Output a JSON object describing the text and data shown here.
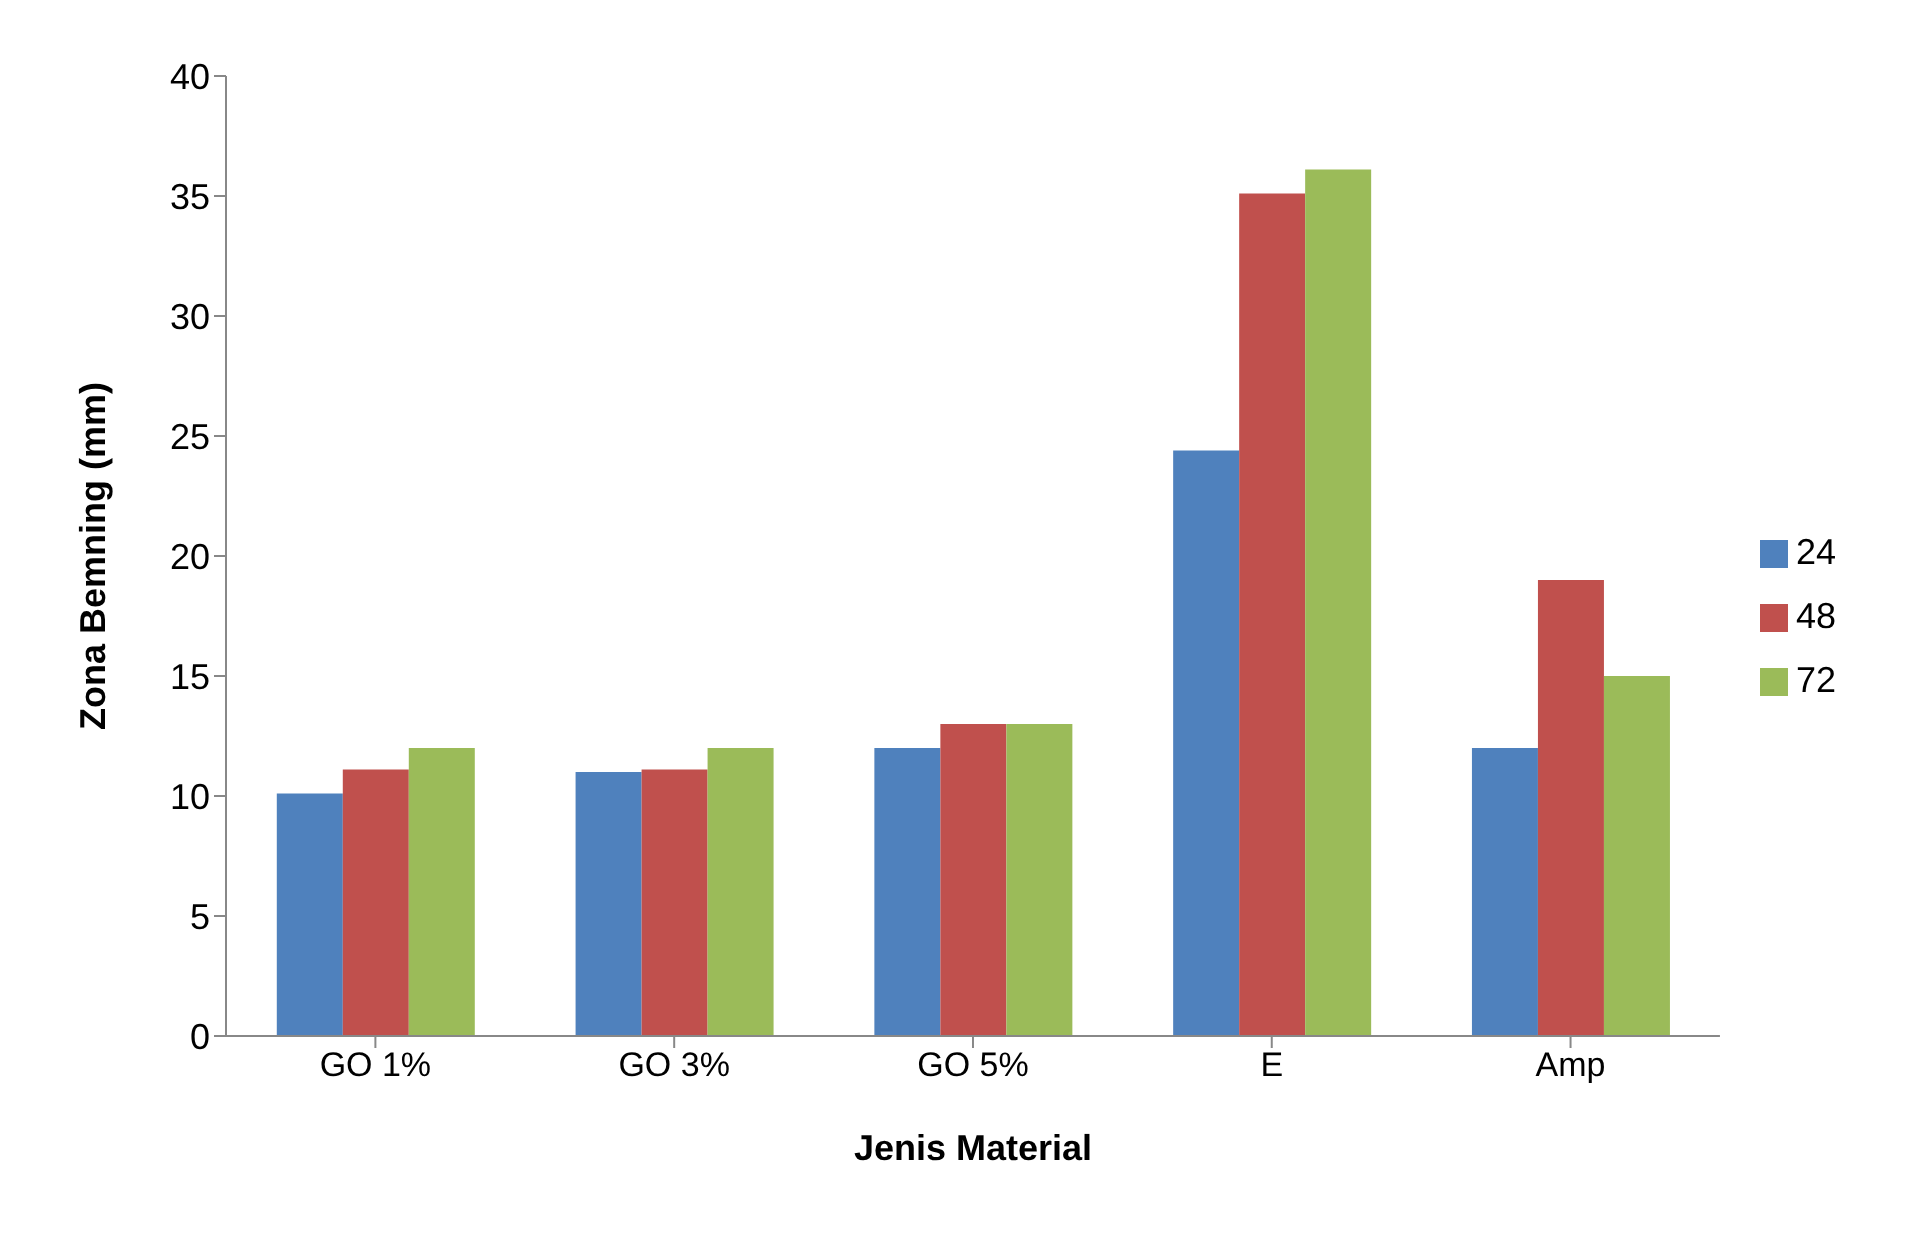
{
  "chart_data": {
    "type": "bar",
    "xlabel": "Jenis Material",
    "ylabel": "Zona Bemning (mm)",
    "categories": [
      "GO 1%",
      "GO 3%",
      "GO 5%",
      "E",
      "Amp"
    ],
    "series": [
      {
        "name": "24",
        "color": "#4f81bd",
        "values": [
          10.1,
          11,
          12,
          24.4,
          12
        ]
      },
      {
        "name": "48",
        "color": "#c0504d",
        "values": [
          11.1,
          11.1,
          13,
          35.1,
          19
        ]
      },
      {
        "name": "72",
        "color": "#9bbb59",
        "values": [
          12,
          12,
          13,
          36.1,
          15
        ]
      }
    ],
    "ylim": [
      0,
      40
    ],
    "yticks": [
      0,
      5,
      10,
      15,
      20,
      25,
      30,
      35,
      40
    ],
    "grid": false,
    "legend": "right"
  }
}
